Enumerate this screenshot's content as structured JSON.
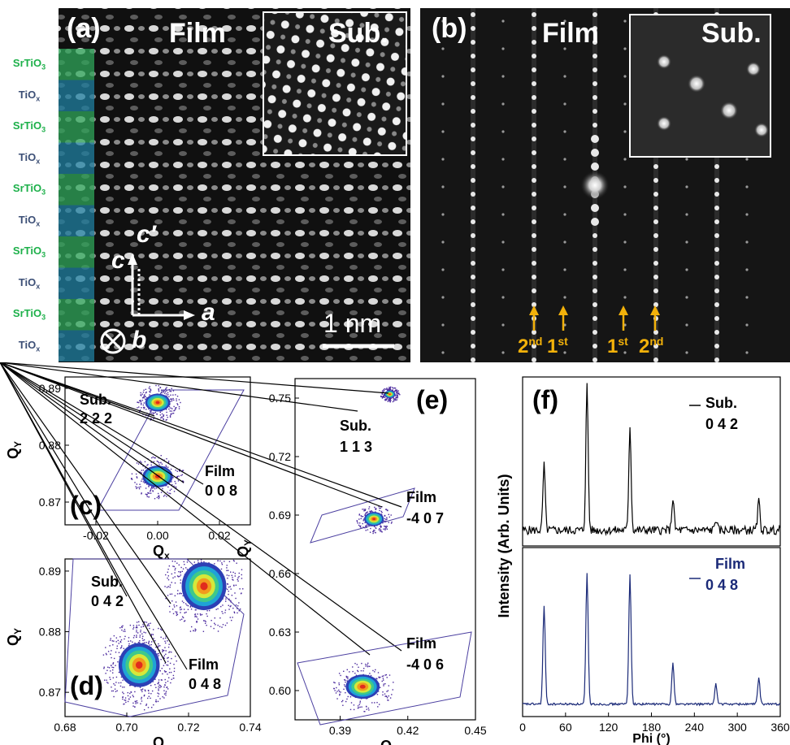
{
  "panel_a": {
    "label": "(a)",
    "film_label": "Film",
    "inset_label": "Sub.",
    "layers": [
      "SrTiO3",
      "TiOx",
      "SrTiO3",
      "TiOx",
      "SrTiO3",
      "TiOx",
      "SrTiO3",
      "TiOx",
      "SrTiO3",
      "TiOx"
    ],
    "axis_c": "c",
    "axis_cprime": "c′",
    "axis_a": "a",
    "axis_b": "b",
    "scale_bar": "1 nm",
    "colors": {
      "srtio3": "#2fa55a",
      "tiox": "#1f7fa0",
      "label_srtio3": "#1db04a",
      "label_tiox": "#3c4f76"
    }
  },
  "panel_b": {
    "label": "(b)",
    "film_label": "Film",
    "inset_label": "Sub.",
    "arrows": [
      {
        "base": "2",
        "sup": "nd"
      },
      {
        "base": "1",
        "sup": "st"
      },
      {
        "base": "1",
        "sup": "st"
      },
      {
        "base": "2",
        "sup": "nd"
      }
    ],
    "arrow_color": "#f2b10a"
  },
  "chart_data": [
    {
      "id": "c",
      "type": "heatmap",
      "panel_label": "(c)",
      "xlabel": "Qx",
      "ylabel": "QY",
      "xlim": [
        -0.03,
        0.03
      ],
      "ylim": [
        0.866,
        0.892
      ],
      "xticks": [
        -0.02,
        0.0,
        0.02
      ],
      "yticks": [
        0.87,
        0.88,
        0.89
      ],
      "xtick_labels": [
        "-0.02",
        "0.00",
        "0.02"
      ],
      "ytick_labels": [
        "0.87",
        "0.88",
        "0.89"
      ],
      "peaks": [
        {
          "name": "Sub.",
          "hkl": "2 2 2",
          "x": 0.0,
          "y": 0.8875
        },
        {
          "name": "Film",
          "hkl": "0 0 8",
          "x": 0.0,
          "y": 0.8745
        }
      ],
      "annotations": [
        {
          "text": "Sub.",
          "target": "sub"
        },
        {
          "text": "2 2 2",
          "target": "sub"
        },
        {
          "text": "Film",
          "target": "film"
        },
        {
          "text": "0 0 8",
          "target": "film"
        }
      ]
    },
    {
      "id": "d",
      "type": "heatmap",
      "panel_label": "(d)",
      "xlabel": "Qx",
      "ylabel": "QY",
      "xlim": [
        0.68,
        0.74
      ],
      "ylim": [
        0.866,
        0.892
      ],
      "xticks": [
        0.68,
        0.7,
        0.72,
        0.74
      ],
      "yticks": [
        0.87,
        0.88,
        0.89
      ],
      "xtick_labels": [
        "0.68",
        "0.70",
        "0.72",
        "0.74"
      ],
      "ytick_labels": [
        "0.87",
        "0.88",
        "0.89"
      ],
      "peaks": [
        {
          "name": "Sub.",
          "hkl": "0 4 2",
          "x": 0.725,
          "y": 0.8875
        },
        {
          "name": "Film",
          "hkl": "0 4 8",
          "x": 0.704,
          "y": 0.8745
        }
      ]
    },
    {
      "id": "e",
      "type": "heatmap",
      "panel_label": "(e)",
      "xlabel": "Qx",
      "ylabel": "QY",
      "xlim": [
        0.37,
        0.45
      ],
      "ylim": [
        0.585,
        0.76
      ],
      "xticks": [
        0.39,
        0.42,
        0.45
      ],
      "yticks": [
        0.6,
        0.63,
        0.66,
        0.69,
        0.72,
        0.75
      ],
      "xtick_labels": [
        "0.39",
        "0.42",
        "0.45"
      ],
      "ytick_labels": [
        "0.60",
        "0.63",
        "0.66",
        "0.69",
        "0.72",
        "0.75"
      ],
      "peaks": [
        {
          "name": "Sub.",
          "hkl": "1 1 3",
          "x": 0.412,
          "y": 0.752
        },
        {
          "name": "Film",
          "hkl": "-4 0 7",
          "x": 0.405,
          "y": 0.688
        },
        {
          "name": "Film",
          "hkl": "-4 0 6",
          "x": 0.4,
          "y": 0.602
        }
      ]
    },
    {
      "id": "f",
      "type": "line",
      "panel_label": "(f)",
      "xlabel": "Phi (°)",
      "ylabel": "Intensity (Arb. Units)",
      "xlim": [
        0,
        360
      ],
      "xticks": [
        0,
        60,
        120,
        180,
        240,
        300,
        360
      ],
      "xtick_labels": [
        "0",
        "60",
        "120",
        "180",
        "240",
        "300",
        "360"
      ],
      "series": [
        {
          "name": "Sub.",
          "hkl": "0 4 2",
          "color": "#000000",
          "peaks_x": [
            30,
            90,
            150,
            210,
            270,
            330
          ],
          "peaks_y": [
            0.45,
            1.0,
            0.72,
            0.22,
            0.08,
            0.2
          ]
        },
        {
          "name": "Film",
          "hkl": "0 4 8",
          "color": "#1b2a78",
          "peaks_x": [
            30,
            90,
            150,
            210,
            270,
            330
          ],
          "peaks_y": [
            0.68,
            0.9,
            0.9,
            0.28,
            0.14,
            0.18
          ]
        }
      ]
    }
  ],
  "labels": {
    "c_sub": "Sub.",
    "c_sub_hkl": "2 2 2",
    "c_film": "Film",
    "c_film_hkl": "0 0 8",
    "d_sub": "Sub.",
    "d_sub_hkl": "0 4 2",
    "d_film": "Film",
    "d_film_hkl": "0 4 8",
    "e_sub": "Sub.",
    "e_sub_hkl": "1 1 3",
    "e_film1": "Film",
    "e_film1_hkl": "-4 0 7",
    "e_film2": "Film",
    "e_film2_hkl": "-4 0 6",
    "f_sub": "Sub.",
    "f_sub_hkl": "0 4 2",
    "f_film": "Film",
    "f_film_hkl": "0 4 8"
  }
}
